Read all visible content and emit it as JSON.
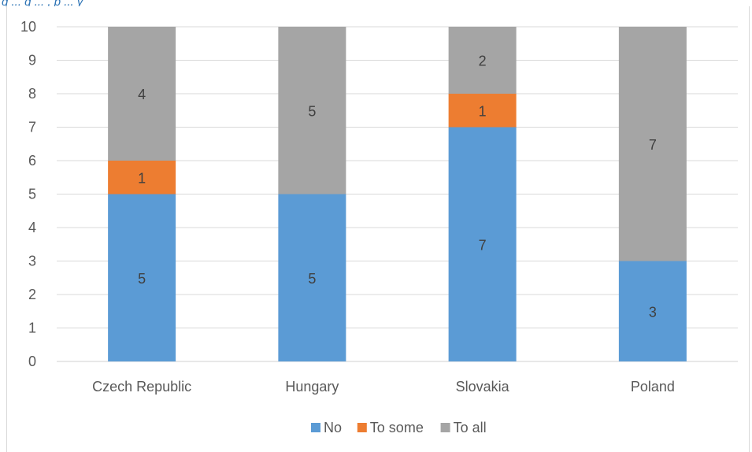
{
  "caption": "g  ...  g  ...  , p  ...  y",
  "chart_data": {
    "type": "bar",
    "stacked": true,
    "categories": [
      "Czech Republic",
      "Hungary",
      "Slovakia",
      "Poland"
    ],
    "series": [
      {
        "name": "No",
        "values": [
          5,
          5,
          7,
          3
        ],
        "color": "#5b9bd5"
      },
      {
        "name": "To some",
        "values": [
          1,
          0,
          1,
          0
        ],
        "color": "#ed7d31"
      },
      {
        "name": "To all",
        "values": [
          4,
          5,
          2,
          7
        ],
        "color": "#a5a5a5"
      }
    ],
    "ylim": [
      0,
      10
    ],
    "yticks": [
      "0",
      "1",
      "2",
      "3",
      "4",
      "5",
      "6",
      "7",
      "8",
      "9",
      "10"
    ],
    "grid": true,
    "legend_position": "bottom"
  }
}
